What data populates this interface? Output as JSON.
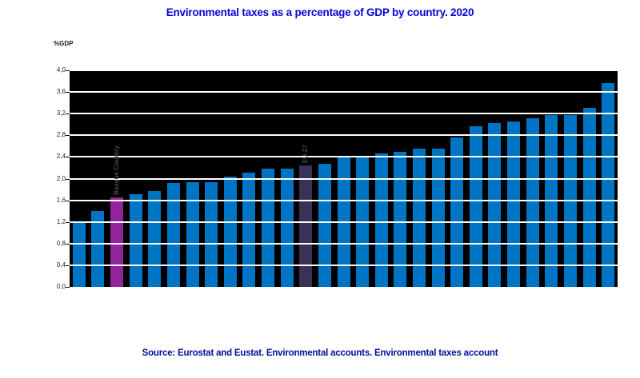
{
  "header": {
    "title": "Environmental taxes as a percentage of GDP by country. 2020",
    "title_color": "#0404d8"
  },
  "y_axis": {
    "unit_label": "%GDP",
    "tick_labels_top_to_bottom": [
      "4,0",
      "3,6",
      "3,2",
      "2,8",
      "2,4",
      "2,0",
      "1,6",
      "1,2",
      "0,8",
      "0,4",
      "0,0"
    ]
  },
  "footer": {
    "source": "Source: Eurostat and Eustat. Environmental accounts. Environmental taxes account",
    "source_color": "#000f9b"
  },
  "colors": {
    "bar_default": "#0074c4",
    "bar_basque_country": "#92239b",
    "bar_eu27": "#3a3157",
    "plot_background": "#000000",
    "gridline": "#ffffff",
    "axis_text": "#1f1f1f",
    "annotation_text": "#4a4a4a"
  },
  "chart_data": {
    "type": "bar",
    "title": "Environmental taxes as a percentage of GDP by country. 2020",
    "xlabel": "",
    "ylabel": "%GDP",
    "ylim": [
      0,
      4.0
    ],
    "ytick_step": 0.4,
    "grid": true,
    "x_tick_labels_visible": false,
    "legend": "none",
    "values": [
      1.21,
      1.4,
      1.65,
      1.71,
      1.77,
      1.92,
      1.94,
      1.94,
      2.04,
      2.11,
      2.18,
      2.19,
      2.24,
      2.27,
      2.39,
      2.39,
      2.47,
      2.5,
      2.55,
      2.55,
      2.76,
      2.96,
      3.03,
      3.06,
      3.11,
      3.18,
      3.18,
      3.3,
      3.77
    ],
    "highlights": [
      {
        "index": 2,
        "label": "Basque Country",
        "color": "#92239b"
      },
      {
        "index": 12,
        "label": "EU-27",
        "color": "#3a3157"
      }
    ]
  }
}
